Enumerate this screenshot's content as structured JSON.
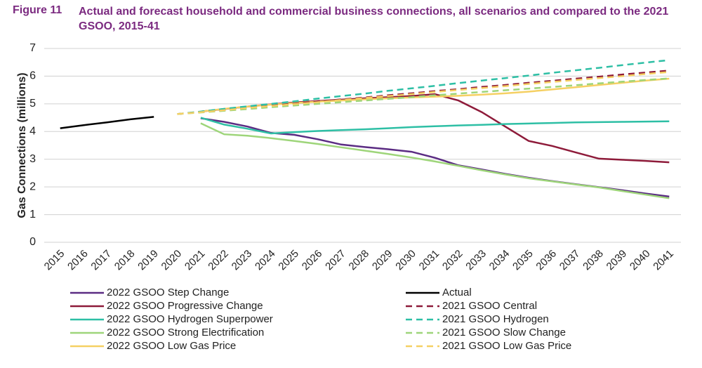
{
  "chart_data": {
    "type": "line",
    "figure_label": "Figure 11",
    "title": "Actual and forecast household and commercial business connections, all scenarios and compared to the 2021 GSOO, 2015-41",
    "y_label": "Gas Connections (millions)",
    "categories": [
      "2015",
      "2016",
      "2017",
      "2018",
      "2019",
      "2020",
      "2021",
      "2022",
      "2023",
      "2024",
      "2025",
      "2026",
      "2027",
      "2028",
      "2029",
      "2030",
      "2031",
      "2032",
      "2033",
      "2034",
      "2035",
      "2036",
      "2037",
      "2038",
      "2039",
      "2040",
      "2041"
    ],
    "ylim": [
      0,
      7
    ],
    "yticks": [
      0,
      1,
      2,
      3,
      4,
      5,
      6,
      7
    ],
    "grid": true,
    "series": [
      {
        "name": "2022 GSOO Step Change",
        "color": "#5b2c83",
        "dashed": false,
        "values": [
          null,
          null,
          null,
          null,
          null,
          null,
          4.48,
          4.35,
          4.18,
          3.95,
          3.88,
          3.72,
          3.53,
          3.44,
          3.36,
          3.27,
          3.05,
          2.78,
          2.63,
          2.47,
          2.33,
          2.21,
          2.1,
          1.99,
          1.88,
          1.76,
          1.65
        ]
      },
      {
        "name": "2022 GSOO Progressive Change",
        "color": "#8e1b3a",
        "dashed": false,
        "values": [
          null,
          null,
          null,
          null,
          null,
          null,
          4.72,
          4.81,
          4.9,
          4.98,
          5.05,
          5.1,
          5.15,
          5.2,
          5.24,
          5.28,
          5.35,
          5.12,
          4.7,
          4.18,
          3.66,
          3.48,
          3.25,
          3.02,
          2.98,
          2.94,
          2.89
        ]
      },
      {
        "name": "2022 GSOO Hydrogen Superpower",
        "color": "#2ebfa5",
        "dashed": false,
        "values": [
          null,
          null,
          null,
          null,
          null,
          null,
          4.5,
          4.25,
          4.1,
          3.93,
          3.98,
          4.02,
          4.05,
          4.08,
          4.12,
          4.16,
          4.19,
          4.22,
          4.24,
          4.27,
          4.29,
          4.31,
          4.33,
          4.34,
          4.35,
          4.36,
          4.37
        ]
      },
      {
        "name": "2022 GSOO Strong Electrification",
        "color": "#9ed57a",
        "dashed": false,
        "values": [
          null,
          null,
          null,
          null,
          null,
          null,
          4.3,
          3.9,
          3.85,
          3.76,
          3.66,
          3.55,
          3.43,
          3.31,
          3.19,
          3.06,
          2.92,
          2.76,
          2.6,
          2.45,
          2.31,
          2.2,
          2.09,
          1.98,
          1.85,
          1.72,
          1.59
        ]
      },
      {
        "name": "2022 GSOO Low Gas Price",
        "color": "#f5d063",
        "dashed": false,
        "values": [
          null,
          null,
          null,
          null,
          null,
          null,
          4.72,
          4.82,
          4.9,
          4.97,
          5.03,
          5.08,
          5.12,
          5.16,
          5.2,
          5.23,
          5.26,
          5.29,
          5.33,
          5.38,
          5.44,
          5.52,
          5.6,
          5.68,
          5.76,
          5.84,
          5.91
        ]
      },
      {
        "name": "Actual",
        "color": "#000000",
        "dashed": false,
        "values": [
          4.12,
          4.23,
          4.33,
          4.44,
          4.53,
          null,
          null,
          null,
          null,
          null,
          null,
          null,
          null,
          null,
          null,
          null,
          null,
          null,
          null,
          null,
          null,
          null,
          null,
          null,
          null,
          null,
          null
        ]
      },
      {
        "name": "2021 GSOO Central",
        "color": "#8e1b3a",
        "dashed": true,
        "values": [
          null,
          null,
          null,
          null,
          null,
          4.63,
          4.71,
          4.78,
          4.86,
          4.93,
          5.01,
          5.08,
          5.16,
          5.23,
          5.31,
          5.38,
          5.46,
          5.53,
          5.61,
          5.68,
          5.76,
          5.83,
          5.91,
          5.98,
          6.06,
          6.13,
          6.2
        ]
      },
      {
        "name": "2021 GSOO Hydrogen",
        "color": "#2ebfa5",
        "dashed": true,
        "values": [
          null,
          null,
          null,
          null,
          null,
          4.63,
          4.72,
          4.82,
          4.91,
          5.0,
          5.09,
          5.19,
          5.28,
          5.37,
          5.47,
          5.56,
          5.65,
          5.75,
          5.84,
          5.93,
          6.02,
          6.12,
          6.21,
          6.3,
          6.4,
          6.49,
          6.58
        ]
      },
      {
        "name": "2021 GSOO Slow Change",
        "color": "#9ed57a",
        "dashed": true,
        "values": [
          null,
          null,
          null,
          null,
          null,
          4.63,
          4.69,
          4.75,
          4.81,
          4.88,
          4.94,
          5.0,
          5.06,
          5.12,
          5.18,
          5.24,
          5.31,
          5.37,
          5.43,
          5.49,
          5.55,
          5.61,
          5.67,
          5.74,
          5.8,
          5.86,
          5.92
        ]
      },
      {
        "name": "2021 GSOO Low Gas Price",
        "color": "#f5d063",
        "dashed": true,
        "values": [
          null,
          null,
          null,
          null,
          null,
          4.63,
          4.7,
          4.77,
          4.85,
          4.92,
          4.99,
          5.06,
          5.14,
          5.21,
          5.28,
          5.35,
          5.43,
          5.5,
          5.57,
          5.64,
          5.72,
          5.79,
          5.86,
          5.93,
          6.0,
          6.08,
          6.15
        ]
      }
    ]
  }
}
